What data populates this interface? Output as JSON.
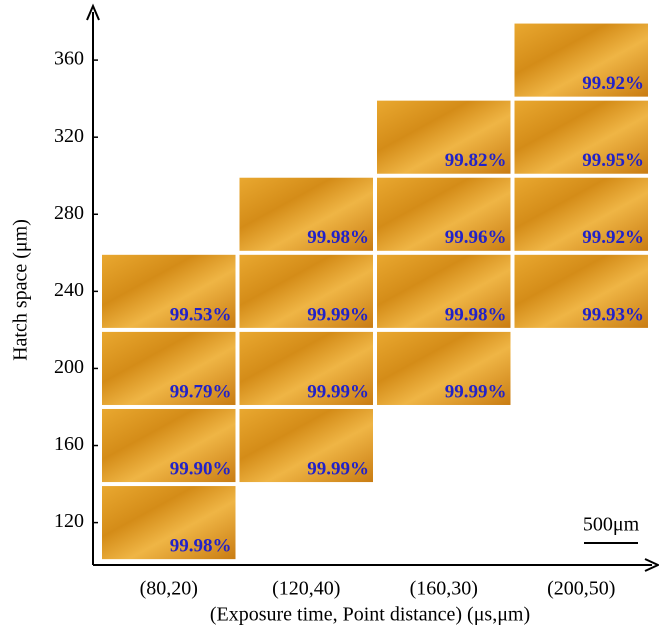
{
  "chart_data": {
    "type": "tile-grid",
    "x_label": "(Exposure time, Point distance) (μs,μm)",
    "y_label": "Hatch space (μm)",
    "categories": [
      "(80,20)",
      "(120,40)",
      "(160,30)",
      "(200,50)"
    ],
    "ylim": [
      98,
      386
    ],
    "yticks": [
      120,
      160,
      200,
      240,
      280,
      320,
      360
    ],
    "scale_bar": "500μm",
    "series": [
      {
        "name": "(80,20)",
        "y": [
          120,
          160,
          200,
          240
        ],
        "values": [
          99.98,
          99.9,
          99.79,
          99.53
        ],
        "value_labels": [
          "99.98%",
          "99.90%",
          "99.79%",
          "99.53%"
        ]
      },
      {
        "name": "(120,40)",
        "y": [
          160,
          200,
          240,
          280
        ],
        "values": [
          99.99,
          99.99,
          99.99,
          99.98
        ],
        "value_labels": [
          "99.99%",
          "99.99%",
          "99.99%",
          "99.98%"
        ]
      },
      {
        "name": "(160,30)",
        "y": [
          200,
          240,
          280,
          320
        ],
        "values": [
          99.99,
          99.98,
          99.96,
          99.82
        ],
        "value_labels": [
          "99.99%",
          "99.98%",
          "99.96%",
          "99.82%"
        ]
      },
      {
        "name": "(200,50)",
        "y": [
          240,
          280,
          320,
          360
        ],
        "values": [
          99.93,
          99.92,
          99.95,
          99.92
        ],
        "value_labels": [
          "99.93%",
          "99.92%",
          "99.95%",
          "99.92%"
        ]
      }
    ],
    "label_color": "#2222c8"
  }
}
